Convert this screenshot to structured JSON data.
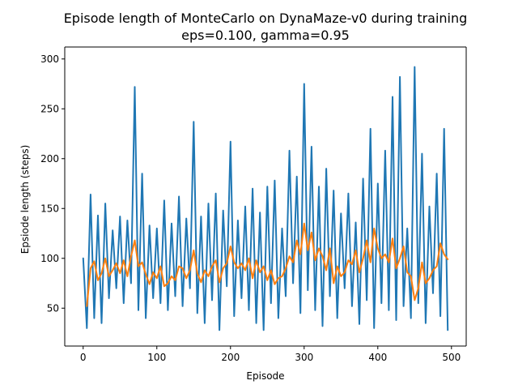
{
  "chart_data": {
    "type": "line",
    "title": "Episode length of MonteCarlo on DynaMaze-v0 during training",
    "subtitle": "eps=0.100, gamma=0.95",
    "xlabel": "Episode",
    "ylabel": "Epsiode length (steps)",
    "xlim": [
      -25,
      520
    ],
    "ylim": [
      12,
      312
    ],
    "xticks": [
      0,
      100,
      200,
      300,
      400,
      500
    ],
    "yticks": [
      50,
      100,
      150,
      200,
      250,
      300
    ],
    "grid": false,
    "legend": "none",
    "series": [
      {
        "color": "#1f77b4",
        "x": [
          0,
          5,
          10,
          15,
          20,
          25,
          30,
          35,
          40,
          45,
          50,
          55,
          60,
          65,
          70,
          75,
          80,
          85,
          90,
          95,
          100,
          105,
          110,
          115,
          120,
          125,
          130,
          135,
          140,
          145,
          150,
          155,
          160,
          165,
          170,
          175,
          180,
          185,
          190,
          195,
          200,
          205,
          210,
          215,
          220,
          225,
          230,
          235,
          240,
          245,
          250,
          255,
          260,
          265,
          270,
          275,
          280,
          285,
          290,
          295,
          300,
          305,
          310,
          315,
          320,
          325,
          330,
          335,
          340,
          345,
          350,
          355,
          360,
          365,
          370,
          375,
          380,
          385,
          390,
          395,
          400,
          405,
          410,
          415,
          420,
          425,
          430,
          435,
          440,
          445,
          450,
          455,
          460,
          465,
          470,
          475,
          480,
          485,
          490,
          495
        ],
        "y": [
          100,
          30,
          164,
          40,
          143,
          35,
          155,
          60,
          128,
          70,
          142,
          55,
          138,
          75,
          272,
          48,
          185,
          40,
          133,
          60,
          130,
          55,
          158,
          48,
          135,
          62,
          162,
          52,
          140,
          70,
          237,
          45,
          142,
          35,
          155,
          58,
          165,
          28,
          148,
          72,
          217,
          42,
          138,
          60,
          152,
          48,
          170,
          35,
          146,
          28,
          172,
          55,
          178,
          40,
          130,
          62,
          208,
          75,
          182,
          45,
          275,
          68,
          212,
          48,
          172,
          32,
          190,
          62,
          168,
          40,
          145,
          70,
          165,
          52,
          136,
          34,
          180,
          58,
          230,
          30,
          175,
          55,
          208,
          48,
          262,
          38,
          282,
          52,
          130,
          40,
          292,
          55,
          205,
          35,
          152,
          65,
          185,
          42,
          230,
          28
        ]
      },
      {
        "color": "#ff7f0e",
        "x": [
          5,
          10,
          15,
          20,
          25,
          30,
          35,
          40,
          45,
          50,
          55,
          60,
          65,
          70,
          75,
          80,
          85,
          90,
          95,
          100,
          105,
          110,
          115,
          120,
          125,
          130,
          135,
          140,
          145,
          150,
          155,
          160,
          165,
          170,
          175,
          180,
          185,
          190,
          195,
          200,
          205,
          210,
          215,
          220,
          225,
          230,
          235,
          240,
          245,
          250,
          255,
          260,
          265,
          270,
          275,
          280,
          285,
          290,
          295,
          300,
          305,
          310,
          315,
          320,
          325,
          330,
          335,
          340,
          345,
          350,
          355,
          360,
          365,
          370,
          375,
          380,
          385,
          390,
          395,
          400,
          405,
          410,
          415,
          420,
          425,
          430,
          435,
          440,
          445,
          450,
          455,
          460,
          465,
          470,
          475,
          480,
          485,
          490,
          495
        ],
        "y": [
          52,
          90,
          97,
          78,
          85,
          100,
          82,
          88,
          95,
          85,
          98,
          82,
          102,
          118,
          92,
          96,
          84,
          74,
          86,
          80,
          92,
          72,
          75,
          82,
          78,
          92,
          90,
          80,
          88,
          108,
          85,
          76,
          88,
          82,
          92,
          98,
          76,
          90,
          95,
          112,
          96,
          90,
          95,
          88,
          100,
          80,
          98,
          86,
          92,
          78,
          88,
          74,
          80,
          82,
          90,
          102,
          96,
          118,
          104,
          135,
          108,
          126,
          98,
          110,
          102,
          88,
          110,
          75,
          92,
          82,
          86,
          98,
          94,
          108,
          86,
          100,
          118,
          96,
          130,
          110,
          100,
          104,
          96,
          120,
          90,
          100,
          112,
          86,
          82,
          58,
          70,
          96,
          75,
          80,
          88,
          92,
          115,
          104,
          99
        ]
      }
    ]
  }
}
